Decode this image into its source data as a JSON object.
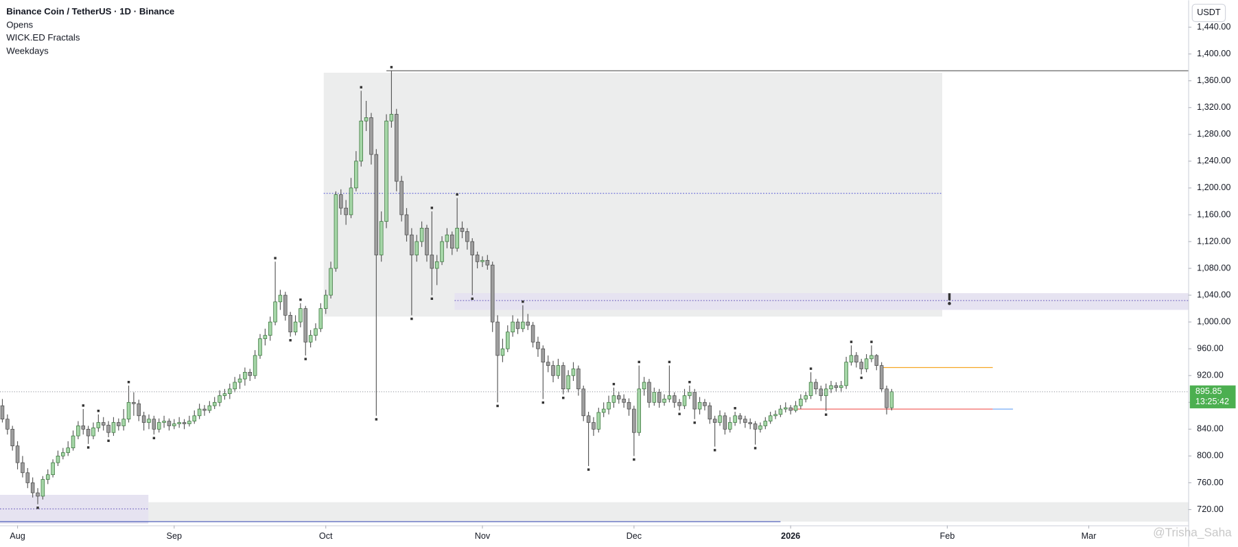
{
  "chart_data": {
    "type": "candlestick",
    "title": "Binance Coin / TetherUS · 1D · Binance",
    "indicators": [
      "Opens",
      "WICK.ED Fractals",
      "Weekdays"
    ],
    "currency": "USDT",
    "countdown": "13:25:42",
    "watermark": "@Trisha_Saha",
    "up_color": "#a5d6a7",
    "down_color": "#9e9e9e",
    "xlim": [
      -0.47,
      234.69
    ],
    "ylim": [
      696.4,
      1480.1
    ],
    "xticks": [
      {
        "value": 3,
        "label": "Aug"
      },
      {
        "value": 34,
        "label": "Sep"
      },
      {
        "value": 64,
        "label": "Oct"
      },
      {
        "value": 95,
        "label": "Nov"
      },
      {
        "value": 125,
        "label": "Dec"
      },
      {
        "value": 156,
        "label": "2026"
      },
      {
        "value": 187,
        "label": "Feb"
      },
      {
        "value": 215,
        "label": "Mar"
      }
    ],
    "yticks": [
      {
        "value": 720,
        "label": "720.00"
      },
      {
        "value": 760,
        "label": "760.00"
      },
      {
        "value": 800,
        "label": "800.00"
      },
      {
        "value": 840,
        "label": "840.00"
      },
      {
        "value": 880,
        "label": "880.00"
      },
      {
        "value": 920,
        "label": "920.00"
      },
      {
        "value": 960,
        "label": "960.00"
      },
      {
        "value": 1000,
        "label": "1,000.00"
      },
      {
        "value": 1040,
        "label": "1,040.00"
      },
      {
        "value": 1080,
        "label": "1,080.00"
      },
      {
        "value": 1120,
        "label": "1,120.00"
      },
      {
        "value": 1160,
        "label": "1,160.00"
      },
      {
        "value": 1200,
        "label": "1,200.00"
      },
      {
        "value": 1240,
        "label": "1,240.00"
      },
      {
        "value": 1280,
        "label": "1,280.00"
      },
      {
        "value": 1320,
        "label": "1,320.00"
      },
      {
        "value": 1360,
        "label": "1,360.00"
      },
      {
        "value": 1400,
        "label": "1,400.00"
      },
      {
        "value": 1440,
        "label": "1,440.00"
      }
    ],
    "zones": [
      {
        "x0": -0.47,
        "x1": 234.69,
        "low": 702,
        "high": 731,
        "color": "#eceded"
      },
      {
        "x0": -0.47,
        "x1": 28.9,
        "low": 699,
        "high": 742,
        "color": "#e6e3f1"
      },
      {
        "x0": 63.6,
        "x1": 186,
        "low": 1008,
        "high": 1372,
        "color": "#eceded"
      },
      {
        "x0": 89.5,
        "x1": 234.69,
        "low": 1018,
        "high": 1043,
        "color": "#e6e3f1"
      }
    ],
    "levels": [
      {
        "price": 1375,
        "x0": 76,
        "x1": 234.69,
        "color": "#555555",
        "dash": false
      },
      {
        "price": 1192,
        "x0": 63.6,
        "x1": 186,
        "color": "#5c5fd6",
        "dash": true
      },
      {
        "price": 1032,
        "x0": 89.5,
        "x1": 234.69,
        "color": "#7c6fc4",
        "dash": true
      },
      {
        "price": 721,
        "x0": -0.47,
        "x1": 28.9,
        "color": "#7c6fc4",
        "dash": true
      },
      {
        "price": 702,
        "x0": -0.47,
        "x1": 154,
        "color": "#3f51b5",
        "dash": false
      },
      {
        "price": 932,
        "x0": 174,
        "x1": 196,
        "color": "#f5a623",
        "dash": false
      },
      {
        "price": 870,
        "x0": 156,
        "x1": 196,
        "color": "#f05350",
        "dash": false
      },
      {
        "price": 870,
        "x0": 196,
        "x1": 200,
        "color": "#64a0f5",
        "dash": false
      }
    ],
    "candles": [
      [
        875,
        885,
        850,
        855
      ],
      [
        855,
        862,
        832,
        840
      ],
      [
        840,
        845,
        808,
        815
      ],
      [
        815,
        822,
        780,
        790
      ],
      [
        790,
        800,
        768,
        775
      ],
      [
        775,
        782,
        752,
        760
      ],
      [
        760,
        768,
        738,
        745
      ],
      [
        745,
        752,
        728,
        740
      ],
      [
        740,
        770,
        735,
        765
      ],
      [
        765,
        780,
        758,
        772
      ],
      [
        772,
        795,
        768,
        790
      ],
      [
        790,
        808,
        785,
        800
      ],
      [
        800,
        812,
        795,
        805
      ],
      [
        805,
        822,
        800,
        812
      ],
      [
        812,
        838,
        808,
        830
      ],
      [
        830,
        852,
        825,
        845
      ],
      [
        845,
        870,
        832,
        840
      ],
      [
        840,
        845,
        818,
        830
      ],
      [
        830,
        850,
        825,
        842
      ],
      [
        842,
        862,
        836,
        850
      ],
      [
        850,
        858,
        838,
        846
      ],
      [
        846,
        852,
        828,
        835
      ],
      [
        835,
        858,
        830,
        850
      ],
      [
        850,
        856,
        838,
        845
      ],
      [
        845,
        870,
        838,
        855
      ],
      [
        855,
        905,
        850,
        880
      ],
      [
        880,
        895,
        860,
        878
      ],
      [
        878,
        884,
        852,
        860
      ],
      [
        860,
        866,
        838,
        850
      ],
      [
        850,
        862,
        840,
        855
      ],
      [
        855,
        860,
        832,
        840
      ],
      [
        840,
        856,
        835,
        850
      ],
      [
        850,
        860,
        842,
        852
      ],
      [
        852,
        856,
        838,
        845
      ],
      [
        845,
        855,
        840,
        848
      ],
      [
        848,
        858,
        842,
        850
      ],
      [
        850,
        855,
        840,
        848
      ],
      [
        848,
        860,
        844,
        852
      ],
      [
        852,
        868,
        848,
        860
      ],
      [
        860,
        878,
        855,
        870
      ],
      [
        870,
        876,
        860,
        868
      ],
      [
        868,
        882,
        864,
        875
      ],
      [
        875,
        888,
        870,
        880
      ],
      [
        880,
        898,
        874,
        890
      ],
      [
        890,
        900,
        884,
        893
      ],
      [
        893,
        908,
        885,
        900
      ],
      [
        900,
        918,
        895,
        910
      ],
      [
        910,
        922,
        900,
        915
      ],
      [
        915,
        932,
        905,
        925
      ],
      [
        925,
        930,
        912,
        920
      ],
      [
        920,
        958,
        915,
        950
      ],
      [
        950,
        982,
        945,
        975
      ],
      [
        975,
        990,
        965,
        980
      ],
      [
        980,
        1008,
        972,
        1000
      ],
      [
        1000,
        1090,
        995,
        1030
      ],
      [
        1030,
        1048,
        1018,
        1040
      ],
      [
        1040,
        1045,
        1002,
        1010
      ],
      [
        1010,
        1015,
        978,
        985
      ],
      [
        985,
        1010,
        980,
        1000
      ],
      [
        1000,
        1028,
        992,
        1020
      ],
      [
        1020,
        1024,
        950,
        970
      ],
      [
        970,
        988,
        962,
        980
      ],
      [
        980,
        998,
        972,
        990
      ],
      [
        990,
        1028,
        985,
        1020
      ],
      [
        1020,
        1048,
        1012,
        1040
      ],
      [
        1040,
        1090,
        1035,
        1080
      ],
      [
        1080,
        1195,
        1075,
        1190
      ],
      [
        1190,
        1198,
        1160,
        1170
      ],
      [
        1170,
        1182,
        1145,
        1160
      ],
      [
        1160,
        1215,
        1155,
        1200
      ],
      [
        1200,
        1255,
        1195,
        1240
      ],
      [
        1240,
        1345,
        1232,
        1300
      ],
      [
        1300,
        1330,
        1285,
        1305
      ],
      [
        1305,
        1312,
        1235,
        1250
      ],
      [
        1250,
        1258,
        860,
        1100
      ],
      [
        1100,
        1165,
        1090,
        1150
      ],
      [
        1150,
        1310,
        1140,
        1300
      ],
      [
        1300,
        1375,
        1290,
        1310
      ],
      [
        1310,
        1318,
        1195,
        1210
      ],
      [
        1210,
        1218,
        1150,
        1160
      ],
      [
        1160,
        1170,
        1120,
        1130
      ],
      [
        1130,
        1140,
        1010,
        1100
      ],
      [
        1100,
        1130,
        1090,
        1120
      ],
      [
        1120,
        1150,
        1112,
        1140
      ],
      [
        1140,
        1145,
        1090,
        1100
      ],
      [
        1100,
        1165,
        1040,
        1080
      ],
      [
        1080,
        1100,
        1055,
        1090
      ],
      [
        1090,
        1128,
        1085,
        1120
      ],
      [
        1120,
        1140,
        1110,
        1130
      ],
      [
        1130,
        1135,
        1100,
        1110
      ],
      [
        1110,
        1185,
        1105,
        1140
      ],
      [
        1140,
        1150,
        1125,
        1135
      ],
      [
        1135,
        1140,
        1108,
        1120
      ],
      [
        1120,
        1125,
        1040,
        1100
      ],
      [
        1100,
        1105,
        1080,
        1090
      ],
      [
        1090,
        1098,
        1082,
        1092
      ],
      [
        1092,
        1100,
        1078,
        1085
      ],
      [
        1085,
        1090,
        985,
        1000
      ],
      [
        1000,
        1010,
        880,
        950
      ],
      [
        950,
        975,
        940,
        960
      ],
      [
        960,
        995,
        955,
        985
      ],
      [
        985,
        1010,
        978,
        1000
      ],
      [
        1000,
        1005,
        982,
        990
      ],
      [
        990,
        1025,
        985,
        1000
      ],
      [
        1000,
        1012,
        988,
        995
      ],
      [
        995,
        1000,
        962,
        970
      ],
      [
        970,
        978,
        948,
        960
      ],
      [
        960,
        965,
        885,
        940
      ],
      [
        940,
        950,
        925,
        935
      ],
      [
        935,
        942,
        910,
        920
      ],
      [
        920,
        945,
        915,
        935
      ],
      [
        935,
        940,
        892,
        900
      ],
      [
        900,
        928,
        895,
        920
      ],
      [
        920,
        940,
        912,
        930
      ],
      [
        930,
        935,
        890,
        900
      ],
      [
        900,
        905,
        852,
        860
      ],
      [
        860,
        866,
        785,
        850
      ],
      [
        850,
        858,
        830,
        840
      ],
      [
        840,
        872,
        835,
        865
      ],
      [
        865,
        880,
        858,
        870
      ],
      [
        870,
        890,
        862,
        880
      ],
      [
        880,
        902,
        872,
        890
      ],
      [
        890,
        896,
        878,
        885
      ],
      [
        885,
        892,
        872,
        880
      ],
      [
        880,
        886,
        860,
        870
      ],
      [
        870,
        875,
        800,
        835
      ],
      [
        835,
        935,
        830,
        900
      ],
      [
        900,
        918,
        890,
        910
      ],
      [
        910,
        915,
        872,
        880
      ],
      [
        880,
        902,
        875,
        895
      ],
      [
        895,
        900,
        872,
        880
      ],
      [
        880,
        892,
        875,
        885
      ],
      [
        885,
        935,
        880,
        890
      ],
      [
        890,
        895,
        872,
        880
      ],
      [
        880,
        885,
        868,
        875
      ],
      [
        875,
        900,
        870,
        890
      ],
      [
        890,
        905,
        885,
        895
      ],
      [
        895,
        900,
        855,
        870
      ],
      [
        870,
        888,
        862,
        880
      ],
      [
        880,
        885,
        868,
        875
      ],
      [
        875,
        880,
        848,
        855
      ],
      [
        855,
        860,
        814,
        850
      ],
      [
        850,
        868,
        845,
        860
      ],
      [
        860,
        865,
        832,
        840
      ],
      [
        840,
        858,
        835,
        850
      ],
      [
        850,
        866,
        845,
        860
      ],
      [
        860,
        864,
        848,
        855
      ],
      [
        855,
        860,
        842,
        850
      ],
      [
        850,
        856,
        840,
        848
      ],
      [
        848,
        852,
        817,
        840
      ],
      [
        840,
        850,
        835,
        845
      ],
      [
        845,
        858,
        840,
        852
      ],
      [
        852,
        866,
        848,
        860
      ],
      [
        860,
        868,
        855,
        862
      ],
      [
        862,
        876,
        858,
        870
      ],
      [
        870,
        880,
        865,
        872
      ],
      [
        872,
        876,
        862,
        868
      ],
      [
        868,
        882,
        865,
        875
      ],
      [
        875,
        892,
        870,
        885
      ],
      [
        885,
        896,
        880,
        890
      ],
      [
        890,
        925,
        885,
        910
      ],
      [
        910,
        915,
        892,
        900
      ],
      [
        900,
        905,
        882,
        890
      ],
      [
        890,
        908,
        867,
        900
      ],
      [
        900,
        912,
        894,
        905
      ],
      [
        905,
        910,
        896,
        902
      ],
      [
        902,
        912,
        895,
        905
      ],
      [
        905,
        948,
        900,
        940
      ],
      [
        940,
        965,
        935,
        950
      ],
      [
        950,
        955,
        932,
        940
      ],
      [
        940,
        945,
        922,
        930
      ],
      [
        930,
        952,
        925,
        945
      ],
      [
        945,
        965,
        940,
        950
      ],
      [
        950,
        952,
        928,
        935
      ],
      [
        935,
        940,
        895,
        900
      ],
      [
        900,
        905,
        862,
        872
      ],
      [
        872,
        900,
        868,
        895.85
      ]
    ]
  }
}
